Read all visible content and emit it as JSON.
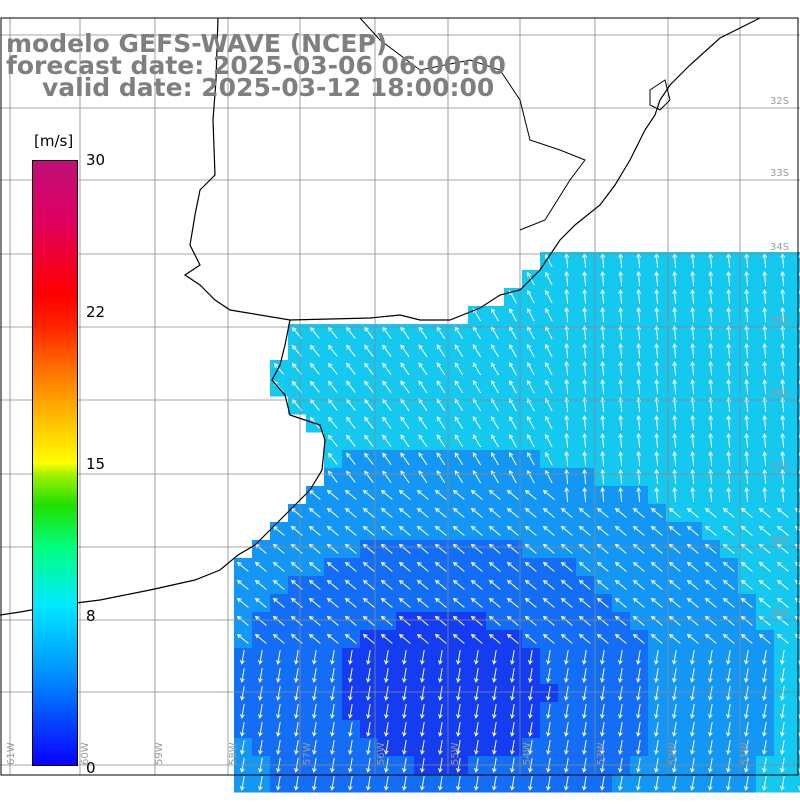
{
  "title": {
    "line1": "modelo GEFS-WAVE (NCEP)",
    "line2": "forecast date: 2025-03-06 06:00:00",
    "line3": "valid date: 2025-03-12 18:00:00"
  },
  "colorbar": {
    "unit": "[m/s]",
    "ticks": [
      "30",
      "22",
      "15",
      "8",
      "0"
    ],
    "range": [
      0,
      30
    ]
  },
  "grid_labels": {
    "latitudes": [
      "32S",
      "33S",
      "34S",
      "35S",
      "36S",
      "37S",
      "38S",
      "39S"
    ],
    "longitudes": [
      "61W",
      "60W",
      "59W",
      "58W",
      "57W",
      "56W",
      "55W",
      "54W",
      "53W",
      "52W",
      "51W"
    ]
  },
  "colors": {
    "land": "#ffffff",
    "coast": "#000000",
    "grid": "#808080",
    "title": "#7f7f7f",
    "arrows": "#ffffff"
  }
}
